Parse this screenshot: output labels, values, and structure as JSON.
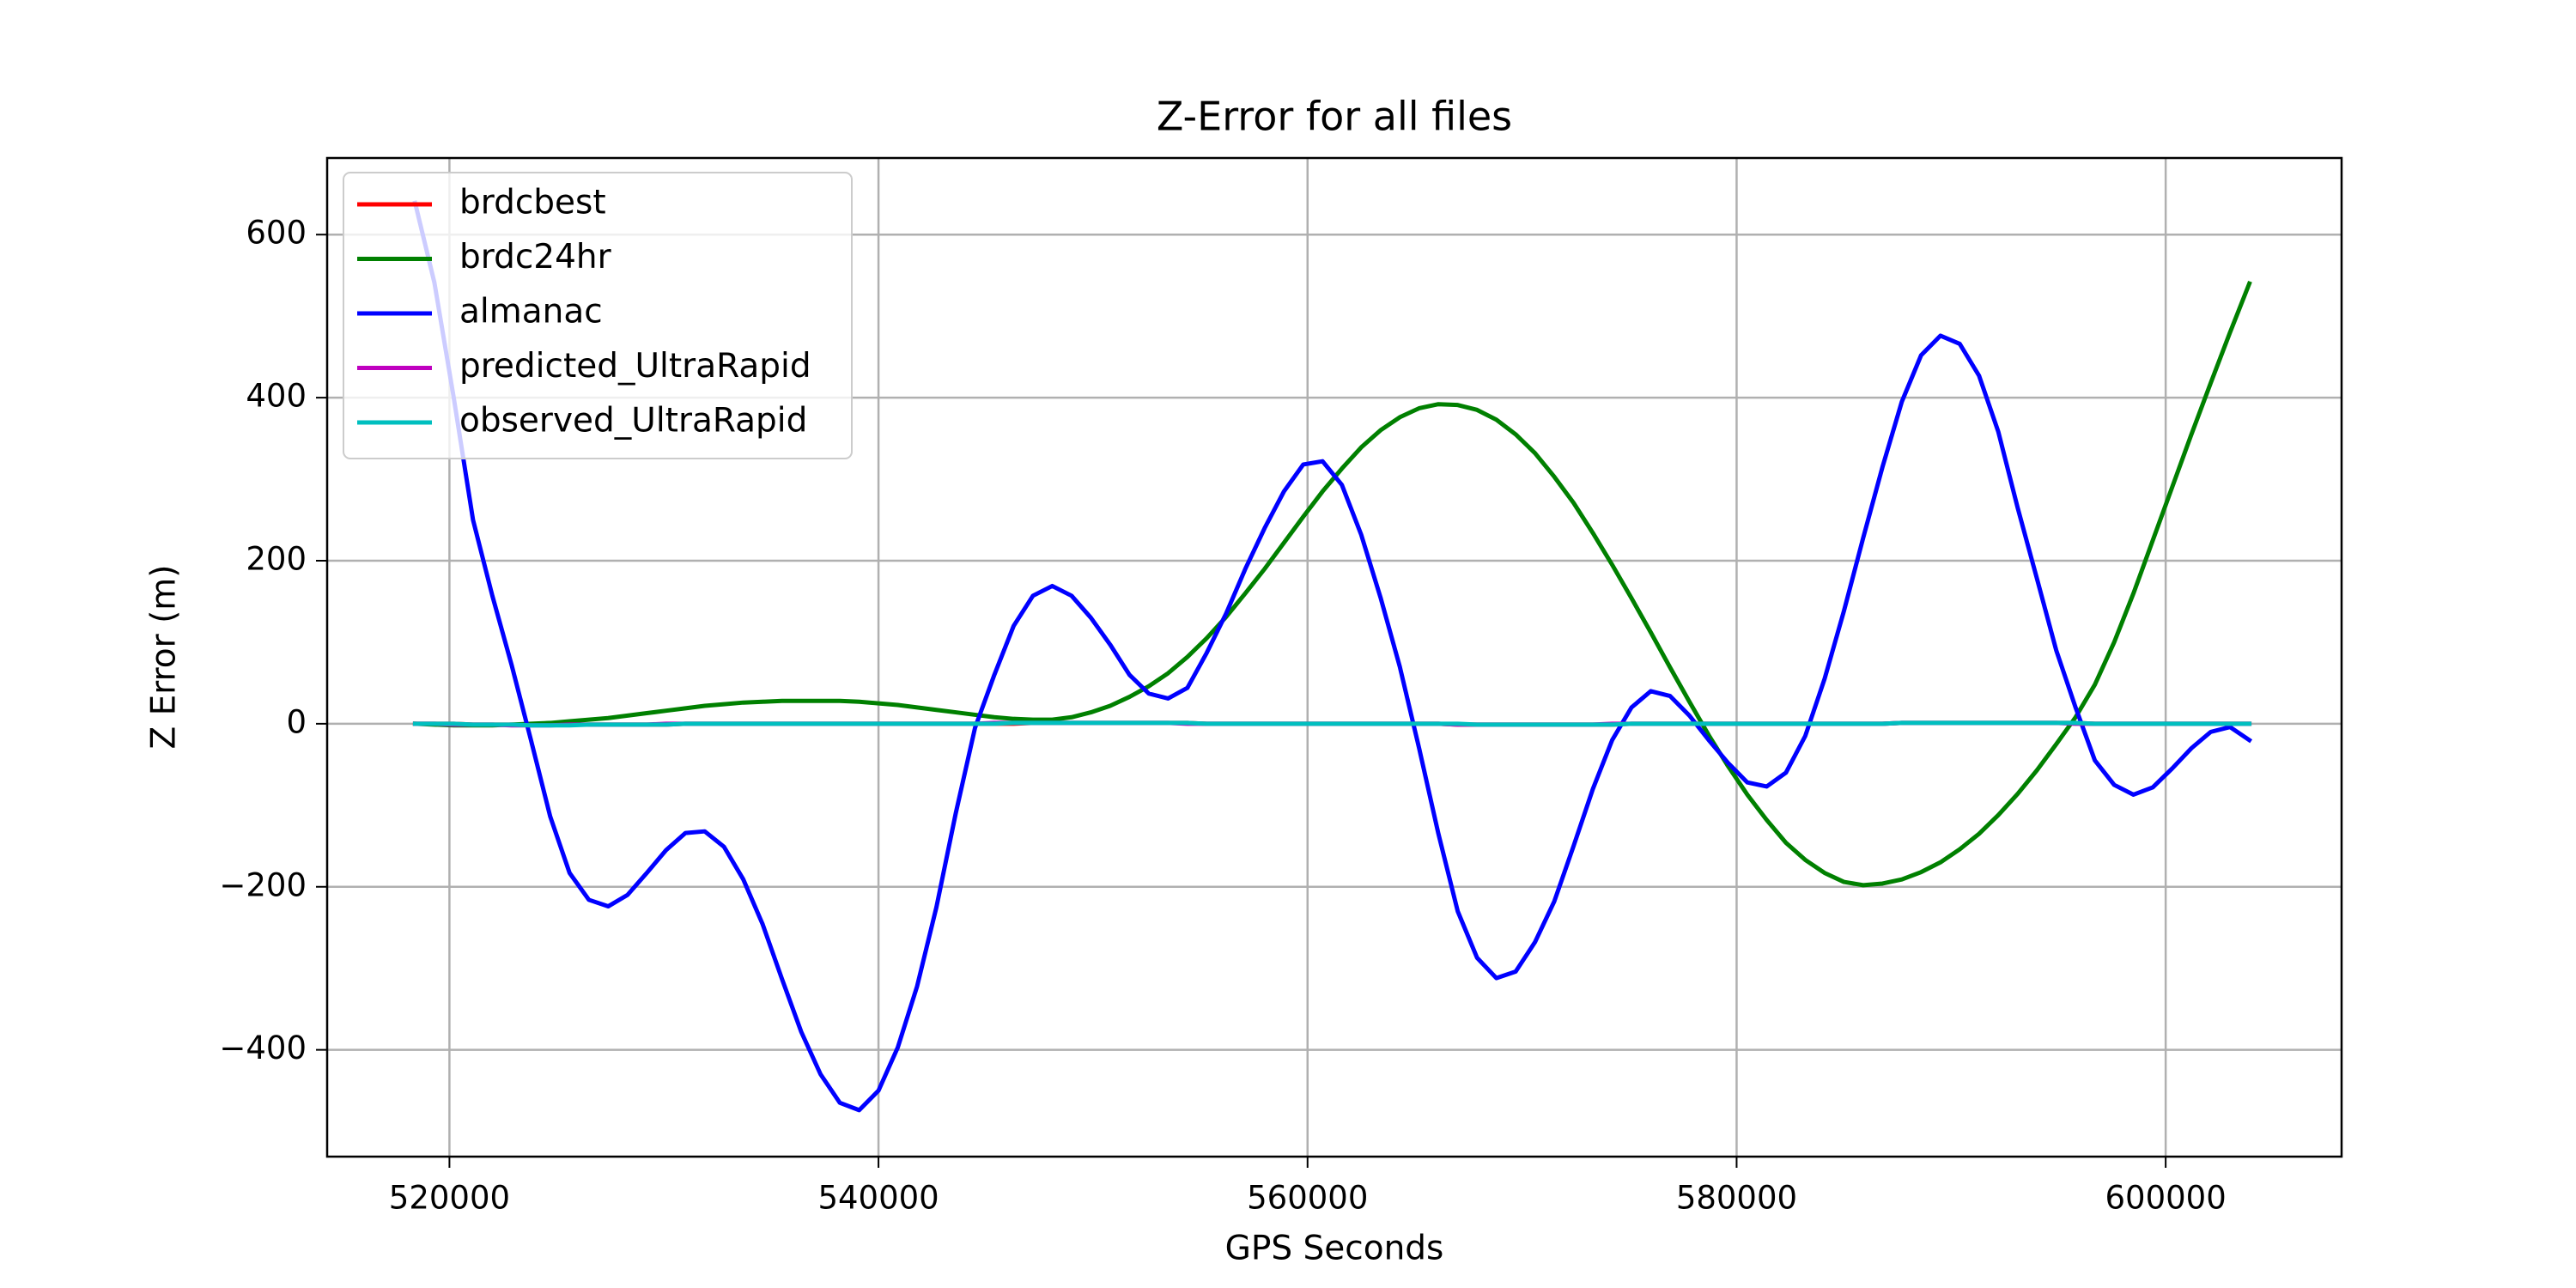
{
  "chart_data": {
    "type": "line",
    "title": "Z-Error for all files",
    "xlabel": "GPS Seconds",
    "ylabel": "Z Error (m)",
    "x": [
      518400,
      519300,
      520200,
      521100,
      522000,
      522900,
      523800,
      524700,
      525600,
      526500,
      527400,
      528300,
      529200,
      530100,
      531000,
      531900,
      532800,
      533700,
      534600,
      535500,
      536400,
      537300,
      538200,
      539100,
      540000,
      540900,
      541800,
      542700,
      543600,
      544500,
      545400,
      546300,
      547200,
      548100,
      549000,
      549900,
      550800,
      551700,
      552600,
      553500,
      554400,
      555300,
      556200,
      557100,
      558000,
      558900,
      559800,
      560700,
      561600,
      562500,
      563400,
      564300,
      565200,
      566100,
      567000,
      567900,
      568800,
      569700,
      570600,
      571500,
      572400,
      573300,
      574200,
      575100,
      576000,
      576900,
      577800,
      578700,
      579600,
      580500,
      581400,
      582300,
      583200,
      584100,
      585000,
      585900,
      586800,
      587700,
      588600,
      589500,
      590400,
      591300,
      592200,
      593100,
      594000,
      594900,
      595800,
      596700,
      597600,
      598500,
      599400,
      600300,
      601200,
      602100,
      603000,
      603900
    ],
    "series": [
      {
        "name": "brdcbest",
        "color": "#ff0000",
        "values": [
          0,
          0,
          0,
          -1,
          -1,
          -1,
          -1,
          -1,
          -1,
          -1,
          -1,
          -1,
          -1,
          -1,
          0,
          0,
          0,
          0,
          0,
          0,
          0,
          0,
          0,
          0,
          0,
          0,
          0,
          0,
          0,
          0,
          0,
          0,
          1,
          1,
          1,
          1,
          1,
          1,
          1,
          1,
          1,
          0,
          0,
          0,
          0,
          0,
          0,
          0,
          0,
          0,
          0,
          0,
          0,
          0,
          -1,
          -1,
          -1,
          -1,
          -1,
          -1,
          -1,
          -1,
          -1,
          0,
          0,
          0,
          0,
          0,
          0,
          0,
          0,
          0,
          0,
          0,
          0,
          0,
          0,
          1,
          1,
          1,
          1,
          1,
          1,
          1,
          1,
          1,
          1,
          0,
          0,
          0,
          0,
          0,
          0,
          0,
          0,
          0
        ]
      },
      {
        "name": "brdc24hr",
        "color": "#008000",
        "values": [
          0,
          -1,
          -2,
          -2,
          -2,
          -1,
          0,
          1,
          3,
          5,
          7,
          10,
          13,
          16,
          19,
          22,
          24,
          26,
          27,
          28,
          28,
          28,
          28,
          27,
          25,
          23,
          20,
          17,
          14,
          11,
          8,
          6,
          5,
          5,
          8,
          14,
          22,
          33,
          46,
          62,
          82,
          105,
          131,
          160,
          190,
          222,
          254,
          285,
          313,
          339,
          360,
          376,
          387,
          392,
          391,
          385,
          373,
          355,
          332,
          303,
          271,
          234,
          195,
          154,
          112,
          69,
          27,
          -14,
          -52,
          -87,
          -118,
          -146,
          -167,
          -183,
          -194,
          -198,
          -196,
          -191,
          -182,
          -170,
          -154,
          -135,
          -112,
          -86,
          -57,
          -25,
          8,
          48,
          100,
          160,
          225,
          290,
          355,
          418,
          480,
          540
        ]
      },
      {
        "name": "almanac",
        "color": "#0000ff",
        "values": [
          639,
          541,
          400,
          250,
          157,
          72,
          -20,
          -114,
          -183,
          -216,
          -224,
          -210,
          -183,
          -155,
          -134,
          -132,
          -151,
          -191,
          -246,
          -313,
          -378,
          -430,
          -465,
          -474,
          -450,
          -397,
          -322,
          -225,
          -110,
          -5,
          60,
          120,
          157,
          169,
          157,
          130,
          97,
          60,
          37,
          31,
          44,
          87,
          135,
          190,
          240,
          285,
          318,
          322,
          293,
          232,
          155,
          70,
          -30,
          -135,
          -230,
          -287,
          -312,
          -304,
          -268,
          -218,
          -150,
          -80,
          -20,
          20,
          40,
          34,
          10,
          -20,
          -48,
          -72,
          -77,
          -60,
          -15,
          55,
          138,
          228,
          315,
          395,
          452,
          476,
          466,
          427,
          358,
          265,
          178,
          90,
          20,
          -45,
          -75,
          -87,
          -78,
          -55,
          -30,
          -10,
          -4,
          -20
        ]
      },
      {
        "name": "predicted_UltraRapid",
        "color": "#bf00bf",
        "values": [
          0,
          0,
          -1,
          -1,
          -1,
          -2,
          -2,
          -2,
          -1,
          -1,
          -1,
          -1,
          -1,
          0,
          0,
          0,
          0,
          0,
          0,
          0,
          0,
          0,
          0,
          0,
          0,
          0,
          0,
          0,
          0,
          0,
          1,
          1,
          1,
          1,
          1,
          1,
          1,
          1,
          1,
          1,
          0,
          0,
          0,
          0,
          0,
          0,
          0,
          0,
          0,
          0,
          0,
          0,
          0,
          0,
          -1,
          -1,
          -1,
          -1,
          -1,
          -1,
          -1,
          -1,
          0,
          0,
          0,
          0,
          0,
          0,
          0,
          0,
          0,
          0,
          0,
          0,
          0,
          0,
          0,
          1,
          1,
          1,
          1,
          1,
          1,
          1,
          1,
          1,
          0,
          0,
          0,
          0,
          0,
          0,
          0,
          0,
          0,
          0
        ]
      },
      {
        "name": "observed_UltraRapid",
        "color": "#00bfbf",
        "values": [
          0,
          0,
          0,
          -1,
          -1,
          -1,
          -2,
          -2,
          -2,
          -1,
          -1,
          -1,
          -1,
          -1,
          0,
          0,
          0,
          0,
          0,
          0,
          0,
          0,
          0,
          0,
          0,
          0,
          0,
          0,
          0,
          0,
          0,
          1,
          1,
          1,
          1,
          1,
          1,
          1,
          1,
          1,
          1,
          0,
          0,
          0,
          0,
          0,
          0,
          0,
          0,
          0,
          0,
          0,
          0,
          0,
          0,
          -1,
          -1,
          -1,
          -1,
          -1,
          -1,
          -1,
          -1,
          0,
          0,
          0,
          0,
          0,
          0,
          0,
          0,
          0,
          0,
          0,
          0,
          0,
          0,
          1,
          1,
          1,
          1,
          1,
          1,
          1,
          1,
          1,
          1,
          0,
          0,
          0,
          0,
          0,
          0,
          0,
          0,
          0
        ]
      }
    ],
    "xlim": [
      514300,
      608200
    ],
    "ylim": [
      -531,
      694
    ],
    "xticks": [
      520000,
      540000,
      560000,
      580000,
      600000
    ],
    "yticks": [
      {
        "value": -400,
        "label": "−400"
      },
      {
        "value": -200,
        "label": "−200"
      },
      0,
      200,
      400,
      600
    ],
    "grid": true,
    "legend": "upper left"
  }
}
